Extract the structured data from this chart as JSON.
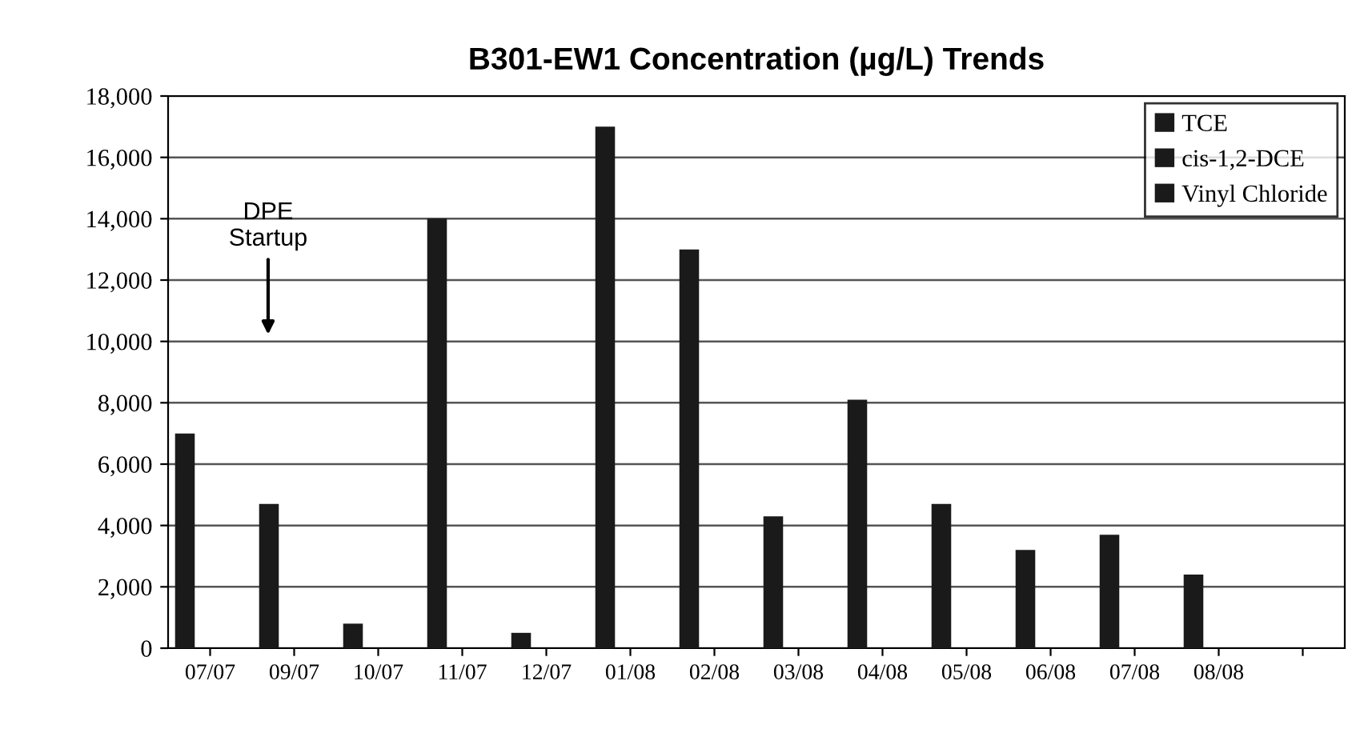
{
  "chart_data": {
    "type": "bar",
    "title": "B301-EW1 Concentration (µg/L) Trends",
    "categories": [
      "07/07",
      "09/07",
      "10/07",
      "11/07",
      "12/07",
      "01/08",
      "02/08",
      "03/08",
      "04/08",
      "05/08",
      "06/08",
      "07/08",
      "08/08",
      null
    ],
    "series": [
      {
        "name": "TCE",
        "color": "#1a1a1a",
        "values": [
          7000,
          4700,
          800,
          14000,
          500,
          17000,
          13000,
          4300,
          8100,
          4700,
          3200,
          3700,
          2400,
          null
        ]
      },
      {
        "name": "cis-1,2-DCE",
        "color": "#1a1a1a",
        "values": [
          0,
          0,
          0,
          0,
          0,
          0,
          0,
          0,
          0,
          0,
          0,
          0,
          0,
          null
        ]
      },
      {
        "name": "Vinyl Chloride",
        "color": "#1a1a1a",
        "values": [
          0,
          0,
          0,
          0,
          0,
          0,
          0,
          0,
          0,
          0,
          0,
          0,
          0,
          null
        ]
      }
    ],
    "ylim": [
      0,
      18000
    ],
    "yticks": [
      {
        "value": 0,
        "label": "0"
      },
      {
        "value": 2000,
        "label": "2,000"
      },
      {
        "value": 4000,
        "label": "4,000"
      },
      {
        "value": 6000,
        "label": "6,000"
      },
      {
        "value": 8000,
        "label": "8,000"
      },
      {
        "value": 10000,
        "label": "10,000"
      },
      {
        "value": 12000,
        "label": "12,000"
      },
      {
        "value": 14000,
        "label": "14,000"
      },
      {
        "value": 16000,
        "label": "16,000"
      },
      {
        "value": 18000,
        "label": "18,000"
      }
    ],
    "grid": "y",
    "legend": "top right",
    "annotations": [
      "DPE\nStartup"
    ]
  }
}
